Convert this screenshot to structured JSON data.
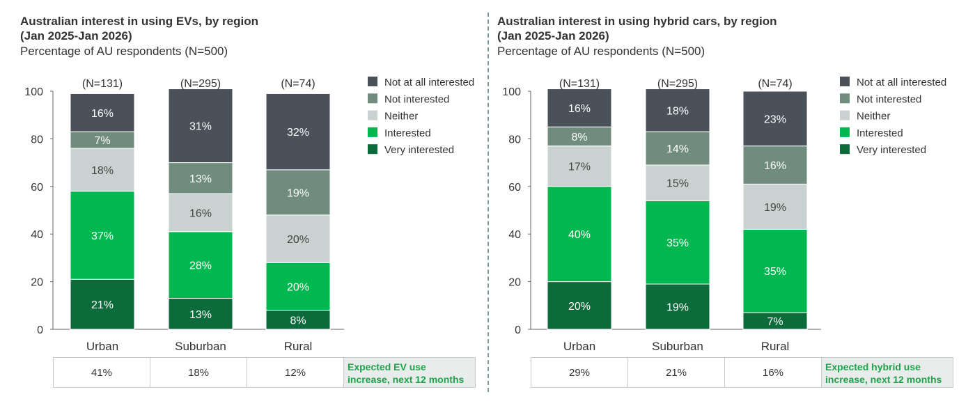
{
  "colors": {
    "not_at_all": "#4a5159",
    "not_interested": "#6f8c7e",
    "neither": "#c9d2d0",
    "interested": "#00b84f",
    "very_interested": "#0b6b3a"
  },
  "chart_data": [
    {
      "type": "bar",
      "stacked": true,
      "title_line1": "Australian interest in using EVs, by region",
      "title_line2": "(Jan 2025-Jan 2026)",
      "subtitle": "Percentage of AU respondents (N=500)",
      "categories": [
        "Urban",
        "Suburban",
        "Rural"
      ],
      "sample_sizes": [
        "(N=131)",
        "(N=295)",
        "(N=74)"
      ],
      "ylim": [
        0,
        100
      ],
      "yticks": [
        0,
        20,
        40,
        60,
        80,
        100
      ],
      "legend_position": "top-right",
      "series": [
        {
          "name": "Very interested",
          "values": [
            21,
            13,
            8
          ]
        },
        {
          "name": "Interested",
          "values": [
            37,
            28,
            20
          ]
        },
        {
          "name": "Neither",
          "values": [
            18,
            16,
            20
          ]
        },
        {
          "name": "Not interested",
          "values": [
            7,
            13,
            19
          ]
        },
        {
          "name": "Not at all interested",
          "values": [
            16,
            31,
            32
          ]
        }
      ],
      "footer": {
        "values": [
          "41%",
          "18%",
          "12%"
        ],
        "label_line1": "Expected EV use",
        "label_line2": "increase, next 12 months"
      }
    },
    {
      "type": "bar",
      "stacked": true,
      "title_line1": "Australian interest in using hybrid cars, by region",
      "title_line2": "(Jan 2025-Jan 2026)",
      "subtitle": "Percentage of AU respondents (N=500)",
      "categories": [
        "Urban",
        "Suburban",
        "Rural"
      ],
      "sample_sizes": [
        "(N=131)",
        "(N=295)",
        "(N=74)"
      ],
      "ylim": [
        0,
        100
      ],
      "yticks": [
        0,
        20,
        40,
        60,
        80,
        100
      ],
      "legend_position": "top-right",
      "series": [
        {
          "name": "Very interested",
          "values": [
            20,
            19,
            7
          ]
        },
        {
          "name": "Interested",
          "values": [
            40,
            35,
            35
          ]
        },
        {
          "name": "Neither",
          "values": [
            17,
            15,
            19
          ]
        },
        {
          "name": "Not interested",
          "values": [
            8,
            14,
            16
          ]
        },
        {
          "name": "Not at all interested",
          "values": [
            16,
            18,
            23
          ]
        }
      ],
      "footer": {
        "values": [
          "29%",
          "21%",
          "16%"
        ],
        "label_line1": "Expected hybrid use",
        "label_line2": "increase, next 12 months"
      }
    }
  ]
}
